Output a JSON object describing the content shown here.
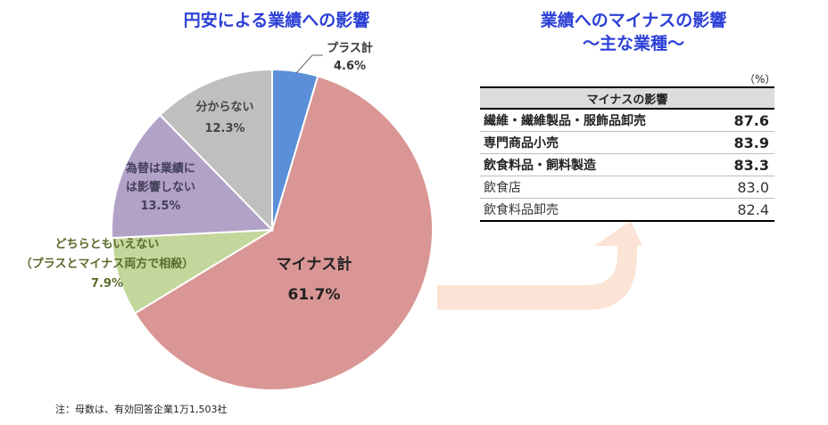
{
  "pie_title": "円安による業績への影響",
  "right_title_line1": "業績へのマイナスの影響",
  "right_title_line2": "〜主な業種〜",
  "note": "注：母数は、有効回答企業1万1,503社",
  "table": {
    "unit": "（%）",
    "header": "マイナスの影響",
    "rows": [
      {
        "label": "繊維・繊維製品・服飾品卸売",
        "value": "87.6",
        "bold": true
      },
      {
        "label": "専門商品小売",
        "value": "83.9",
        "bold": true
      },
      {
        "label": "飲食料品・飼料製造",
        "value": "83.3",
        "bold": true
      },
      {
        "label": "飲食店",
        "value": "83.0",
        "bold": false
      },
      {
        "label": "飲食料品卸売",
        "value": "82.4",
        "bold": false
      }
    ]
  },
  "colors": {
    "plus": "#5b8fd8",
    "minus": "#d99694",
    "neither": "#c3d69b",
    "no_effect": "#b3a2c7",
    "unknown": "#bfbfbf",
    "title": "#2b3fd6",
    "arrow": "#fbe4d5"
  },
  "chart_data": {
    "type": "pie",
    "title": "円安による業績への影響",
    "slices": [
      {
        "name": "プラス計",
        "value": 4.6,
        "label": "4.6%",
        "color": "#5b8fd8",
        "text_color": "#333333"
      },
      {
        "name": "マイナス計",
        "value": 61.7,
        "label": "61.7%",
        "color": "#d99694",
        "text_color": "#222222"
      },
      {
        "name": "どちらともいえない（プラスとマイナス両方で相殺）",
        "lines": [
          "どちらともいえない",
          "（プラスとマイナス両方で相殺）"
        ],
        "value": 7.9,
        "label": "7.9%",
        "color": "#c3d69b",
        "text_color": "#5a6a2a"
      },
      {
        "name": "為替は業績には影響しない",
        "lines": [
          "為替は業績に",
          "は影響しない"
        ],
        "value": 13.5,
        "label": "13.5%",
        "color": "#b3a2c7",
        "text_color": "#44405a"
      },
      {
        "name": "分からない",
        "value": 12.3,
        "label": "12.3%",
        "color": "#bfbfbf",
        "text_color": "#444444"
      }
    ]
  }
}
